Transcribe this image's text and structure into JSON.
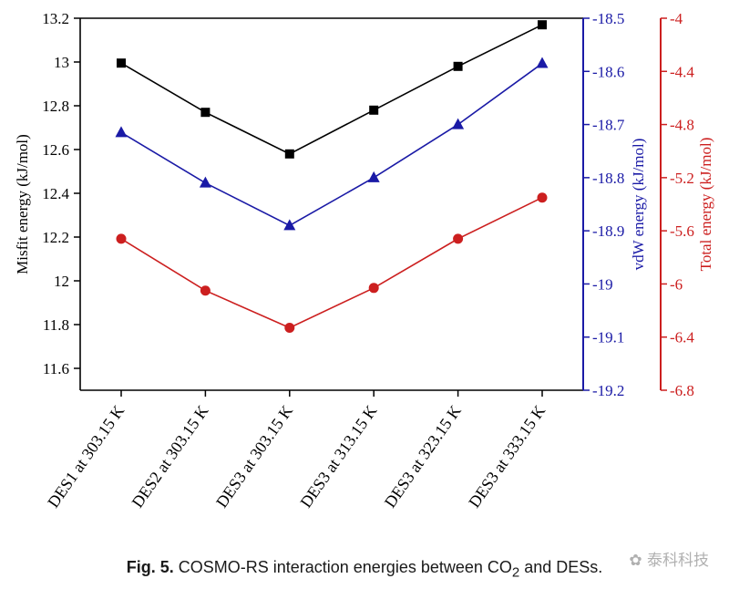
{
  "chart_data": {
    "type": "line",
    "categories": [
      "DES1 at 303.15 K",
      "DES2 at 303.15 K",
      "DES3 at 303.15 K",
      "DES3 at 313.15 K",
      "DES3 at 323.15 K",
      "DES3 at 333.15 K"
    ],
    "series": [
      {
        "axis": "left",
        "color": "#000000",
        "marker": "square",
        "values": [
          12.995,
          12.77,
          12.58,
          12.78,
          12.98,
          13.17
        ]
      },
      {
        "axis": "right1",
        "color": "#1a1aa6",
        "marker": "triangle",
        "values": [
          -18.715,
          -18.81,
          -18.89,
          -18.8,
          -18.7,
          -18.585
        ]
      },
      {
        "axis": "right2",
        "color": "#cc1f1f",
        "marker": "circle",
        "values": [
          -5.66,
          -6.05,
          -6.33,
          -6.03,
          -5.66,
          -5.35
        ]
      }
    ],
    "axes": {
      "left": {
        "label": "Misfit energy (kJ/mol)",
        "color": "#000000",
        "ylim": [
          11.5,
          13.2
        ],
        "ticks": [
          "11.6",
          "11.8",
          "12",
          "12.2",
          "12.4",
          "12.6",
          "12.8",
          "13",
          "13.2"
        ]
      },
      "right1": {
        "label": "vdW energy (kJ/mol)",
        "color": "#1a1aa6",
        "ylim": [
          -19.2,
          -18.5
        ],
        "ticks": [
          "-18.5",
          "-18.6",
          "-18.7",
          "-18.8",
          "-18.9",
          "-19",
          "-19.1",
          "-19.2"
        ]
      },
      "right2": {
        "label": "Total energy (kJ/mol)",
        "color": "#cc1f1f",
        "ylim": [
          -6.8,
          -4.0
        ],
        "ticks": [
          "-4",
          "-4.4",
          "-4.8",
          "-5.2",
          "-5.6",
          "-6",
          "-6.4",
          "-6.8"
        ]
      }
    },
    "grid": false
  },
  "caption": {
    "label": "Fig. 5.",
    "text_before": "COSMO-RS interaction energies between CO",
    "subscript": "2",
    "text_after": " and DESs."
  },
  "watermark": "泰科科技"
}
